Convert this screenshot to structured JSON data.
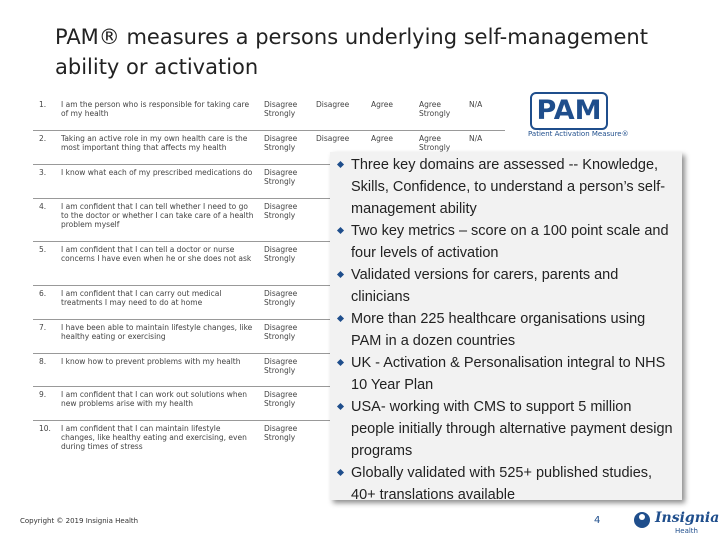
{
  "header": {
    "title": "PAM® measures a persons underlying self-management ability or activation"
  },
  "table": {
    "rows": [
      [
        "1.",
        "I am the person who is responsible for taking care of my health",
        "Disagree Strongly",
        "Disagree",
        "Agree",
        "Agree Strongly",
        "N/A"
      ],
      [
        "2.",
        "Taking an active role in my own health care is the most important thing that affects my health",
        "Disagree Strongly",
        "Disagree",
        "Agree",
        "Agree Strongly",
        "N/A"
      ],
      [
        "3.",
        "I know what each of my prescribed medications do",
        "Disagree Strongly"
      ],
      [
        "4.",
        "I am confident that I can tell whether I need to go to the doctor or whether I can take care of a health problem myself",
        "Disagree Strongly"
      ],
      [
        "5.",
        "I am confident that I can tell a doctor or nurse concerns I have even when he or she does not ask",
        "Disagree Strongly"
      ],
      [
        "6.",
        "I am confident that I can carry out medical treatments I may need to do at home",
        "Disagree Strongly"
      ],
      [
        "7.",
        "I have been able to maintain lifestyle changes, like healthy eating or exercising",
        "Disagree Strongly"
      ],
      [
        "8.",
        "I know how to prevent problems with my health",
        "Disagree Strongly"
      ],
      [
        "9.",
        "I am confident that I can work out solutions when new problems arise with my health",
        "Disagree Strongly"
      ],
      [
        "10.",
        "I am confident that I can maintain lifestyle changes, like healthy eating and exercising, even during times of stress",
        "Disagree Strongly"
      ]
    ]
  },
  "logo": {
    "name": "PAM",
    "subtitle": "Patient Activation Measure®"
  },
  "bullets": [
    "Three key domains are assessed -- Knowledge, Skills, Confidence, to understand a person’s self-management ability",
    "Two key metrics – score on a 100 point scale and four levels of activation",
    "Validated versions for carers, parents and clinicians",
    "More than 225 healthcare organisations using PAM in a dozen countries",
    "UK - Activation & Personalisation integral to NHS 10 Year Plan",
    "USA- working with CMS to support 5 million people initially through alternative payment design programs",
    "Globally validated with 525+ published studies, 40+ translations available"
  ],
  "footer": {
    "copyright": "Copyright © 2019 Insignia Health",
    "page": "4",
    "brand": "Insignia",
    "brand_sub": "Health"
  }
}
